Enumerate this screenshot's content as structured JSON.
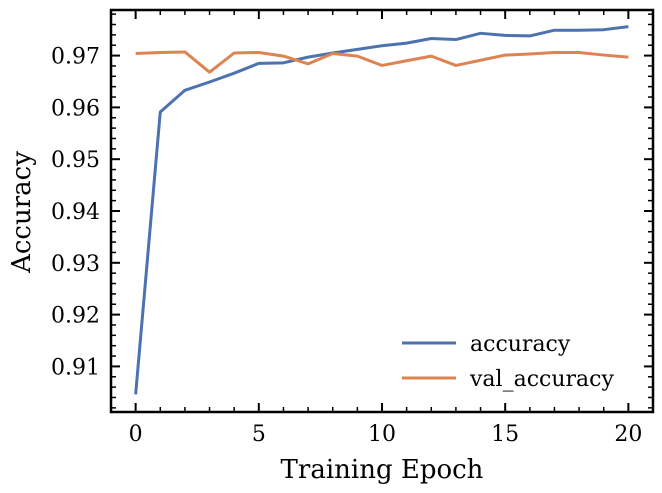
{
  "chart_data": {
    "type": "line",
    "title": "",
    "xlabel": "Training Epoch",
    "ylabel": "Accuracy",
    "xlim": [
      -1,
      21
    ],
    "ylim": [
      0.9012,
      0.9788
    ],
    "xticks": [
      0,
      5,
      10,
      15,
      20
    ],
    "yticks": [
      0.91,
      0.92,
      0.93,
      0.94,
      0.95,
      0.96,
      0.97
    ],
    "xtick_labels": [
      "0",
      "5",
      "10",
      "15",
      "20"
    ],
    "ytick_labels": [
      "0.91",
      "0.92",
      "0.93",
      "0.94",
      "0.95",
      "0.96",
      "0.97"
    ],
    "grid": false,
    "legend_position": "lower-right",
    "x": [
      0,
      1,
      2,
      3,
      4,
      5,
      6,
      7,
      8,
      9,
      10,
      11,
      12,
      13,
      14,
      15,
      16,
      17,
      18,
      19,
      20
    ],
    "series": [
      {
        "name": "accuracy",
        "color": "#4c72b0",
        "values": [
          0.9046,
          0.9591,
          0.9633,
          0.9649,
          0.9666,
          0.9685,
          0.9686,
          0.9697,
          0.9705,
          0.9712,
          0.9719,
          0.9724,
          0.9733,
          0.9731,
          0.9743,
          0.9739,
          0.9738,
          0.9749,
          0.9749,
          0.975,
          0.9756
        ]
      },
      {
        "name": "val_accuracy",
        "color": "#dd8452",
        "values": [
          0.9704,
          0.9706,
          0.9707,
          0.9668,
          0.9705,
          0.9706,
          0.9699,
          0.9684,
          0.9704,
          0.9699,
          0.9681,
          0.969,
          0.9699,
          0.9681,
          0.9691,
          0.9701,
          0.9703,
          0.9706,
          0.9706,
          0.9701,
          0.9697
        ]
      }
    ]
  }
}
